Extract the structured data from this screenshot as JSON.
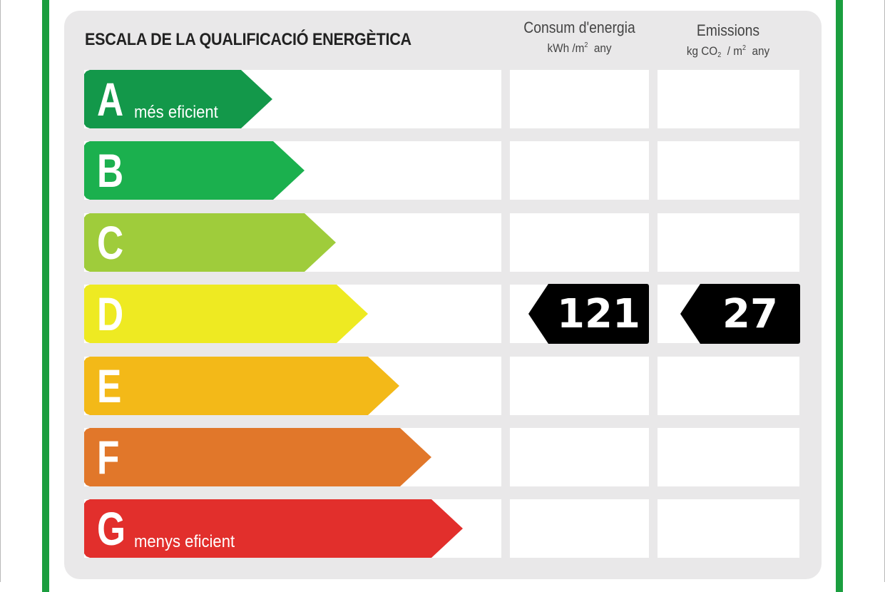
{
  "header": {
    "title": "ESCALA DE LA QUALIFICACIÓ ENERGÈTICA",
    "energy_col": {
      "title": "Consum d'energia",
      "unit_main": "kWh /m",
      "unit_sup": "2",
      "unit_tail": "any"
    },
    "co2_col": {
      "title": "Emissions",
      "unit_kg": "kg CO",
      "unit_sub": "2",
      "unit_mid": "/ m",
      "unit_sup": "2",
      "unit_tail": "any"
    }
  },
  "ratings": [
    {
      "letter": "A",
      "sub": "més eficient",
      "color": "#13984a"
    },
    {
      "letter": "B",
      "sub": "",
      "color": "#1bb04e"
    },
    {
      "letter": "C",
      "sub": "",
      "color": "#9fcc3b"
    },
    {
      "letter": "D",
      "sub": "",
      "color": "#eeea22"
    },
    {
      "letter": "E",
      "sub": "",
      "color": "#f3b918"
    },
    {
      "letter": "F",
      "sub": "",
      "color": "#e1772a"
    },
    {
      "letter": "G",
      "sub": "menys eficient",
      "color": "#e22f2c"
    }
  ],
  "result": {
    "rating_letter": "D",
    "energy_value": "121",
    "co2_value": "27"
  },
  "colors": {
    "frame_green": "#1b9e3f",
    "panel_gray": "#e9e8e9",
    "value_tag": "#000000"
  }
}
